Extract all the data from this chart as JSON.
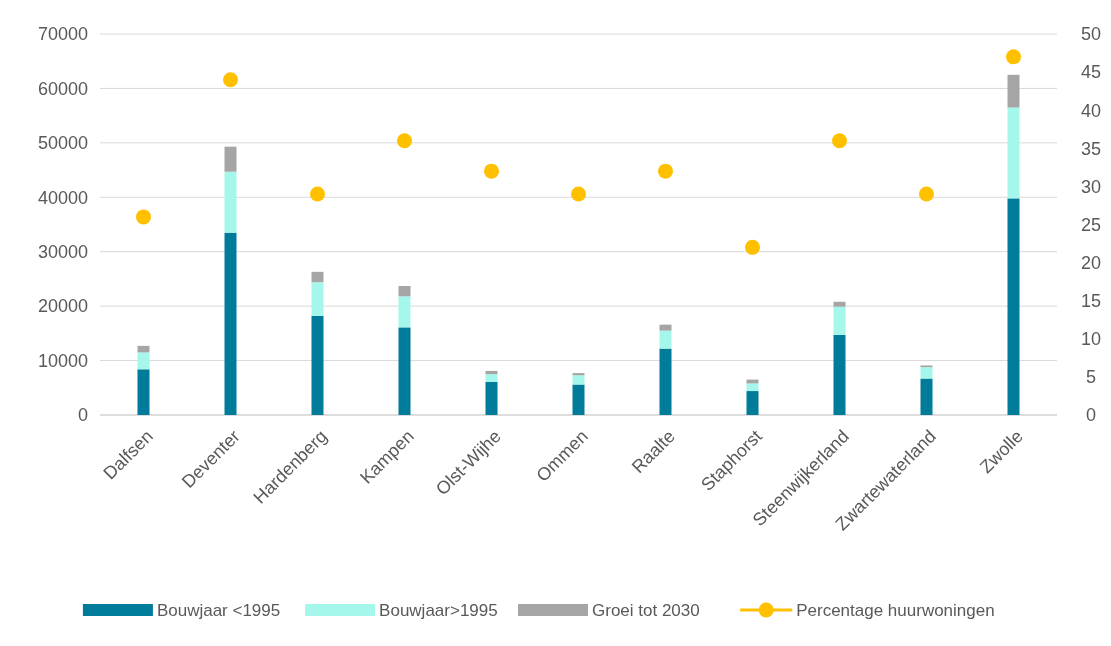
{
  "chart_data": {
    "type": "bar",
    "stacked": true,
    "categories": [
      "Dalfsen",
      "Deventer",
      "Hardenberg",
      "Kampen",
      "Olst-Wijhe",
      "Ommen",
      "Raalte",
      "Staphorst",
      "Steenwijkerland",
      "Zwartewaterland",
      "Zwolle"
    ],
    "series": [
      {
        "name": "Bouwjaar <1995",
        "color": "#007b9a",
        "values": [
          8400,
          33500,
          18200,
          16100,
          6100,
          5600,
          12200,
          4400,
          14700,
          6700,
          39800
        ]
      },
      {
        "name": "Bouwjaar>1995",
        "color": "#a6f7eb",
        "values": [
          3100,
          11200,
          6200,
          5700,
          1400,
          1700,
          3300,
          1400,
          5200,
          2100,
          16700
        ]
      },
      {
        "name": "Groei tot 2030",
        "color": "#a5a5a5",
        "values": [
          1200,
          4600,
          1900,
          1900,
          600,
          400,
          1100,
          700,
          900,
          300,
          6000
        ]
      },
      {
        "name": "Percentage huurwoningen",
        "type": "scatter",
        "axis": "y2",
        "marker": "circle",
        "color": "#ffc000",
        "values": [
          26,
          44,
          29,
          36,
          32,
          29,
          32,
          22,
          36,
          29,
          47
        ]
      }
    ],
    "ylim": [
      0,
      70000
    ],
    "yticks": [
      0,
      10000,
      20000,
      30000,
      40000,
      50000,
      60000,
      70000
    ],
    "y2lim": [
      0,
      50
    ],
    "y2ticks": [
      0,
      5,
      10,
      15,
      20,
      25,
      30,
      35,
      40,
      45,
      50
    ],
    "grid": "y",
    "legend": "bottom"
  }
}
